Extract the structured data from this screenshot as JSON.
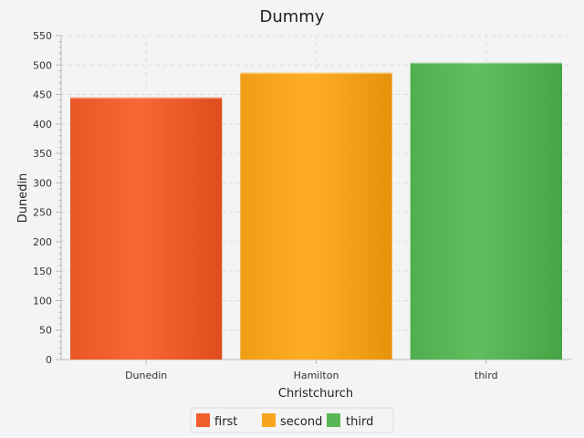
{
  "chart_data": {
    "type": "bar",
    "title": "Dummy",
    "xlabel": "Christchurch",
    "ylabel": "Dunedin",
    "categories": [
      "Dunedin",
      "Hamilton",
      "third"
    ],
    "values": [
      445,
      487,
      504
    ],
    "ylim": [
      0,
      550
    ],
    "yticks": [
      0,
      50,
      100,
      150,
      200,
      250,
      300,
      350,
      400,
      450,
      500,
      550
    ],
    "grid": true,
    "legend_position": "bottom-center",
    "legend": [
      {
        "name": "first",
        "color": "#f15f2f"
      },
      {
        "name": "second",
        "color": "#f8a51d"
      },
      {
        "name": "third",
        "color": "#58b657"
      }
    ],
    "bar_colors": [
      "#f15f2f",
      "#f8a51d",
      "#58b657"
    ]
  }
}
